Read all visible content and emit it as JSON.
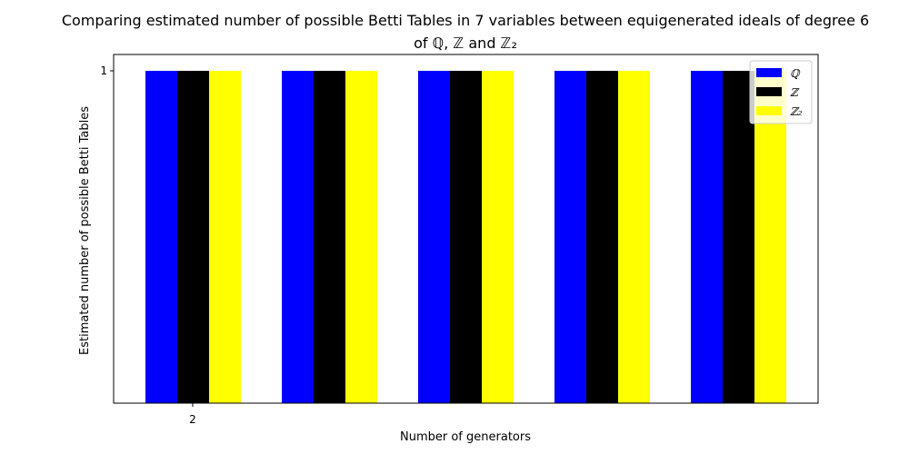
{
  "chart_data": {
    "type": "bar",
    "title_line1": "Comparing estimated number of possible Betti Tables in 7 variables between equigenerated ideals of degree 6",
    "title_line2": "of ℚ, ℤ and  ℤ₂",
    "xlabel": "Number of generators",
    "ylabel": "Estimated number of  possible Betti Tables",
    "categories": [
      "2",
      "",
      "",
      "",
      ""
    ],
    "series": [
      {
        "name": "ℚ",
        "color": "#0000ff",
        "values": [
          1,
          1,
          1,
          1,
          1
        ]
      },
      {
        "name": "ℤ",
        "color": "#000000",
        "values": [
          1,
          1,
          1,
          1,
          1
        ]
      },
      {
        "name": "ℤ₂",
        "color": "#ffff00",
        "values": [
          1,
          1,
          1,
          1,
          1
        ]
      }
    ],
    "yticks": [
      "1"
    ],
    "legend_placement": "upper-right",
    "grid": false
  }
}
